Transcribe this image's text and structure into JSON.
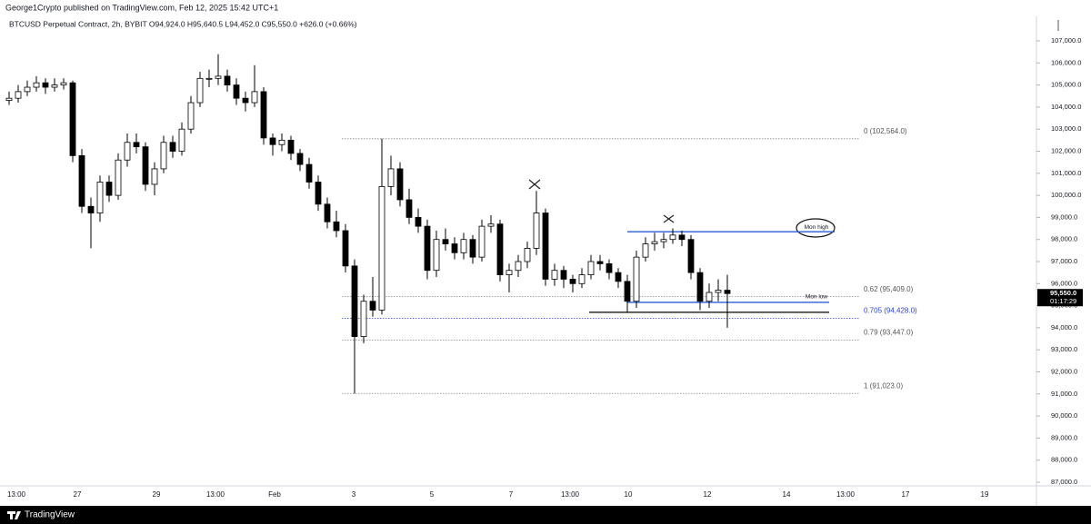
{
  "chart_data": {
    "type": "candlestick",
    "publisher": "George1Crypto published on TradingView.com, Feb 12, 2025 15:42 UTC+1",
    "title": "BTCUSD Perpetual Contract, 2h, BYBIT  O94,924.0  H95,640.5  L94,452.0  C95,550.0  +626.0 (+0.66%)",
    "brand": "TradingView",
    "ylim": [
      87000,
      107000
    ],
    "yticks": [
      {
        "value": 107000,
        "label": "107,000.0"
      },
      {
        "value": 106000,
        "label": "106,000.0"
      },
      {
        "value": 105000,
        "label": "105,000.0"
      },
      {
        "value": 104000,
        "label": "104,000.0"
      },
      {
        "value": 103000,
        "label": "103,000.0"
      },
      {
        "value": 102000,
        "label": "102,000.0"
      },
      {
        "value": 101000,
        "label": "101,000.0"
      },
      {
        "value": 100000,
        "label": "100,000.0"
      },
      {
        "value": 99000,
        "label": "99,000.0"
      },
      {
        "value": 98000,
        "label": "98,000.0"
      },
      {
        "value": 97000,
        "label": "97,000.0"
      },
      {
        "value": 96000,
        "label": "96,000.0"
      },
      {
        "value": 95000,
        "label": "95,000.0"
      },
      {
        "value": 94000,
        "label": "94,000.0"
      },
      {
        "value": 93000,
        "label": "93,000.0"
      },
      {
        "value": 92000,
        "label": "92,000.0"
      },
      {
        "value": 91000,
        "label": "91,000.0"
      },
      {
        "value": 90000,
        "label": "90,000.0"
      },
      {
        "value": 89000,
        "label": "89,000.0"
      },
      {
        "value": 88000,
        "label": "88,000.0"
      },
      {
        "value": 87000,
        "label": "87,000.0"
      }
    ],
    "xticks": [
      "13:00",
      "27",
      "29",
      "13:00",
      "Feb",
      "3",
      "5",
      "7",
      "13:00",
      "10",
      "12",
      "14",
      "13:00",
      "17",
      "19"
    ],
    "last_price": {
      "value": 95550,
      "label": "95,550.0",
      "countdown": "01:17:29"
    },
    "fib_levels": [
      {
        "value": 102564,
        "label": "0 (102,564.0)",
        "color": "#888888"
      },
      {
        "value": 95409,
        "label": "0.62 (95,409.0)",
        "color": "#888888"
      },
      {
        "value": 94428,
        "label": "0.705 (94,428.0)",
        "color": "#2a3fd6"
      },
      {
        "value": 93447,
        "label": "0.79 (93,447.0)",
        "color": "#888888"
      },
      {
        "value": 91023,
        "label": "1 (91,023.0)",
        "color": "#888888"
      }
    ],
    "levels": [
      {
        "text": "Mon high",
        "price": 98350,
        "color": "#2a5bd7"
      },
      {
        "text": "Mon low",
        "price": 95150,
        "color": "#2a5bd7"
      },
      {
        "price": 94700,
        "color": "#000000"
      }
    ],
    "candles": [
      [
        104300,
        104700,
        104100,
        104400
      ],
      [
        104400,
        105000,
        104200,
        104700
      ],
      [
        104700,
        105200,
        104500,
        104900
      ],
      [
        104900,
        105400,
        104700,
        105100
      ],
      [
        105100,
        105300,
        104600,
        104900
      ],
      [
        104900,
        105300,
        104700,
        105000
      ],
      [
        105000,
        105300,
        104800,
        105100
      ],
      [
        105100,
        105200,
        101500,
        101800
      ],
      [
        101800,
        102100,
        99200,
        99500
      ],
      [
        99500,
        99900,
        97600,
        99200
      ],
      [
        99200,
        100900,
        98800,
        100600
      ],
      [
        100600,
        100900,
        99700,
        100000
      ],
      [
        100000,
        101900,
        99800,
        101600
      ],
      [
        101600,
        102800,
        101300,
        102400
      ],
      [
        102400,
        102800,
        101900,
        102200
      ],
      [
        102200,
        102400,
        100200,
        100500
      ],
      [
        100500,
        101500,
        100000,
        101200
      ],
      [
        101200,
        102700,
        101000,
        102400
      ],
      [
        102400,
        102700,
        101700,
        102000
      ],
      [
        102000,
        103300,
        101800,
        103000
      ],
      [
        103000,
        104500,
        102800,
        104200
      ],
      [
        104200,
        105600,
        104000,
        105300
      ],
      [
        105300,
        105700,
        104900,
        105300
      ],
      [
        105300,
        106400,
        105000,
        105400
      ],
      [
        105400,
        105700,
        104700,
        105000
      ],
      [
        105000,
        105300,
        104100,
        104400
      ],
      [
        104400,
        104700,
        103800,
        104200
      ],
      [
        104200,
        105900,
        104000,
        104700
      ],
      [
        104700,
        104900,
        102300,
        102600
      ],
      [
        102600,
        102800,
        101800,
        102300
      ],
      [
        102300,
        102800,
        102000,
        102500
      ],
      [
        102500,
        102700,
        101600,
        101900
      ],
      [
        101900,
        102100,
        101100,
        101400
      ],
      [
        101400,
        101700,
        100300,
        100600
      ],
      [
        100600,
        100900,
        99300,
        99600
      ],
      [
        99600,
        99900,
        98500,
        98800
      ],
      [
        98800,
        99300,
        98100,
        98400
      ],
      [
        98400,
        98700,
        96500,
        96800
      ],
      [
        96800,
        97100,
        91023,
        93600
      ],
      [
        93600,
        95500,
        93300,
        95200
      ],
      [
        95200,
        96300,
        94500,
        94800
      ],
      [
        94800,
        102564,
        94600,
        100400
      ],
      [
        100400,
        101800,
        100000,
        101200
      ],
      [
        101200,
        101500,
        99500,
        99800
      ],
      [
        99800,
        100300,
        98700,
        99000
      ],
      [
        99000,
        99400,
        98300,
        98600
      ],
      [
        98600,
        98900,
        96200,
        96600
      ],
      [
        96600,
        98400,
        96300,
        98000
      ],
      [
        98000,
        98500,
        97500,
        97800
      ],
      [
        97800,
        98100,
        97100,
        97400
      ],
      [
        97400,
        98300,
        97100,
        98000
      ],
      [
        98000,
        98200,
        96900,
        97200
      ],
      [
        97200,
        98900,
        97000,
        98600
      ],
      [
        98600,
        99100,
        98300,
        98700
      ],
      [
        98700,
        98900,
        96100,
        96400
      ],
      [
        96400,
        96900,
        95600,
        96600
      ],
      [
        96600,
        97300,
        96300,
        97000
      ],
      [
        97000,
        97900,
        96700,
        97600
      ],
      [
        97600,
        100200,
        97300,
        99200
      ],
      [
        99200,
        99400,
        95900,
        96200
      ],
      [
        96200,
        96900,
        95900,
        96600
      ],
      [
        96600,
        96800,
        95800,
        96200
      ],
      [
        96200,
        96400,
        95600,
        96000
      ],
      [
        96000,
        96700,
        95800,
        96400
      ],
      [
        96400,
        97300,
        96200,
        97000
      ],
      [
        97000,
        97300,
        96600,
        96900
      ],
      [
        96900,
        97100,
        96200,
        96500
      ],
      [
        96500,
        96700,
        95800,
        96100
      ],
      [
        96100,
        96400,
        94700,
        95200
      ],
      [
        95200,
        97500,
        94900,
        97200
      ],
      [
        97200,
        98100,
        97000,
        97800
      ],
      [
        97800,
        98300,
        97500,
        97900
      ],
      [
        97900,
        98300,
        97600,
        98000
      ],
      [
        98000,
        98500,
        97800,
        98200
      ],
      [
        98200,
        98400,
        97700,
        98000
      ],
      [
        98000,
        98200,
        96200,
        96500
      ],
      [
        96500,
        96700,
        94800,
        95200
      ],
      [
        95200,
        96000,
        94900,
        95600
      ],
      [
        95600,
        96200,
        95200,
        95700
      ],
      [
        95700,
        96400,
        94000,
        95550
      ]
    ]
  }
}
